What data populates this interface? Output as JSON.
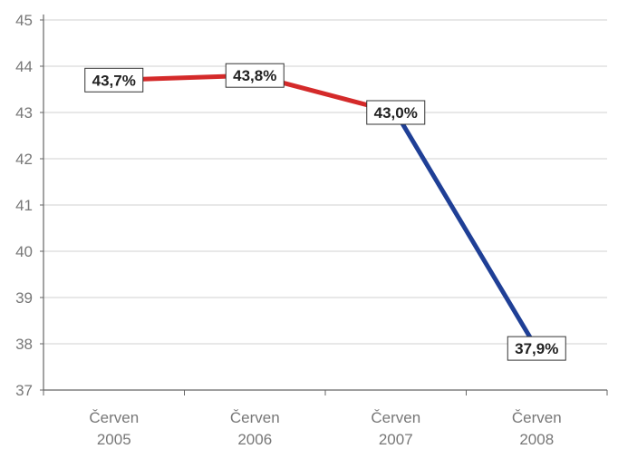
{
  "chart_data": {
    "type": "line",
    "categories": [
      [
        "Červen",
        "2005"
      ],
      [
        "Červen",
        "2006"
      ],
      [
        "Červen",
        "2007"
      ],
      [
        "Červen",
        "2008"
      ]
    ],
    "values": [
      43.7,
      43.8,
      43.0,
      37.9
    ],
    "data_labels": [
      "43,7%",
      "43,8%",
      "43,0%",
      "37,9%"
    ],
    "segment_colors": [
      "#d42a2a",
      "#d42a2a",
      "#1f3f96"
    ],
    "yticks": [
      "37",
      "38",
      "39",
      "40",
      "41",
      "42",
      "43",
      "44",
      "45"
    ],
    "ylim": [
      37,
      45
    ],
    "grid": true,
    "title": "",
    "xlabel": "",
    "ylabel": ""
  }
}
